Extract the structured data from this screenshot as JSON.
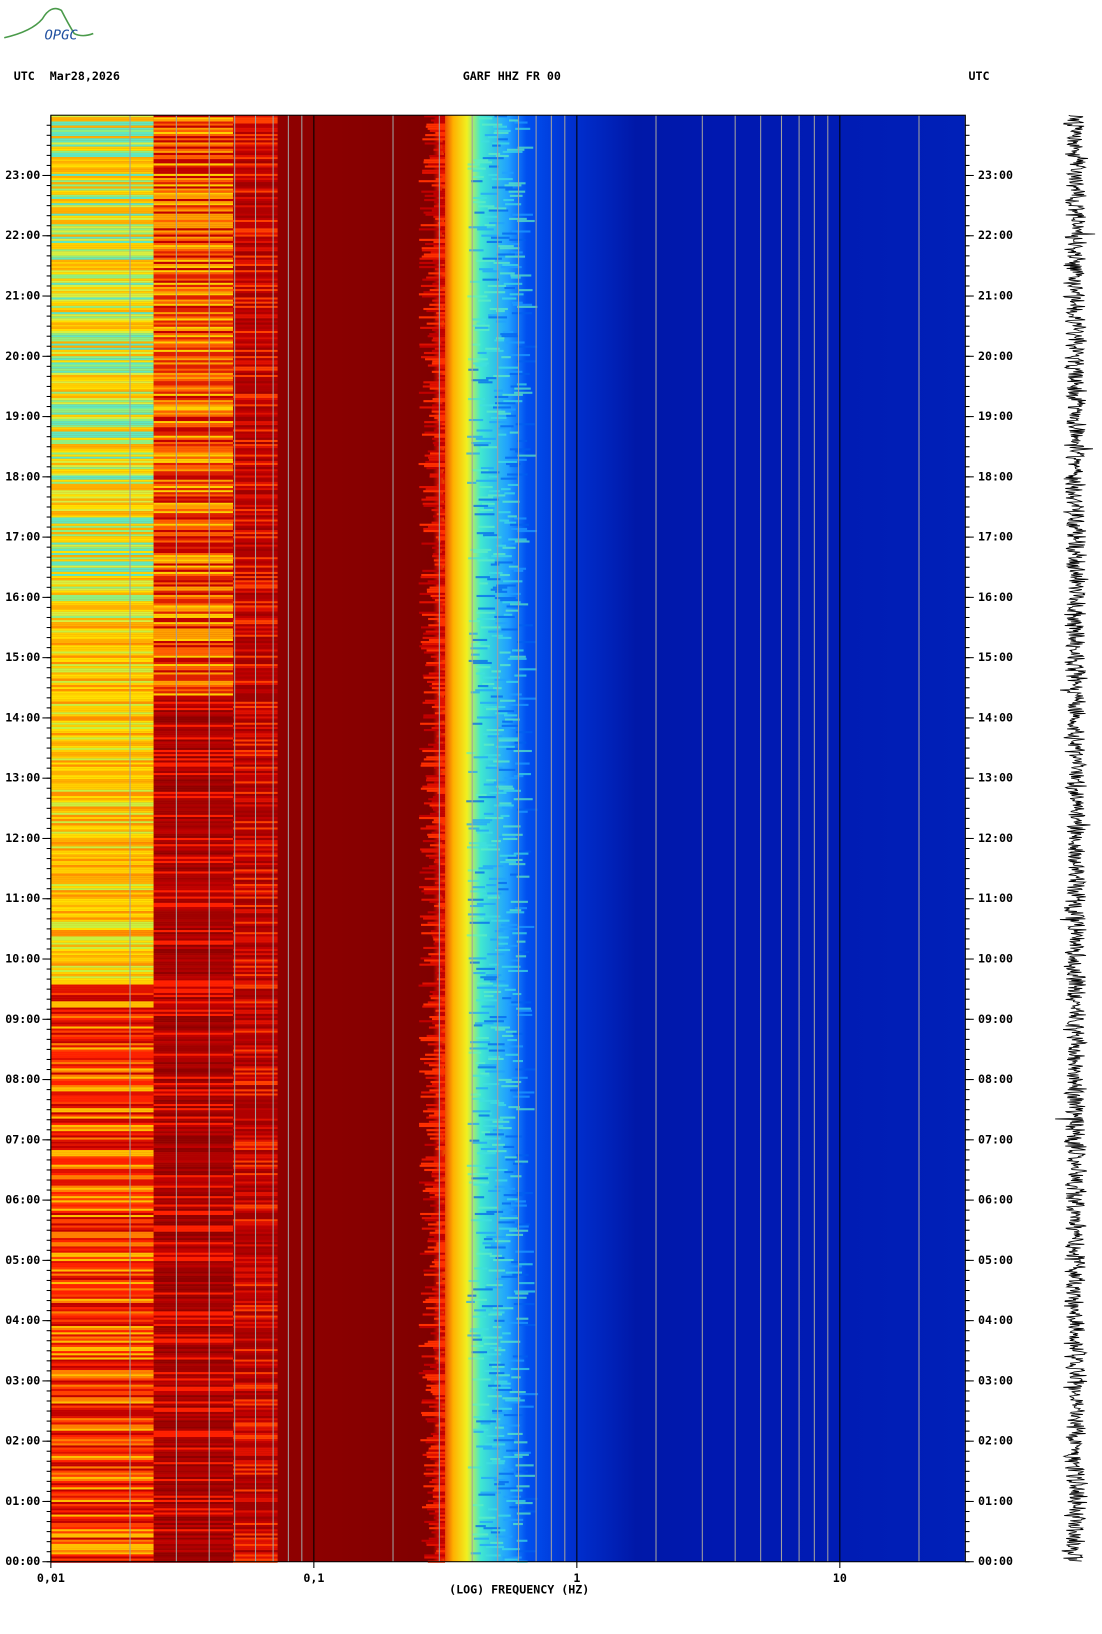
{
  "logo": "OPGC",
  "chart_data": {
    "type": "spectrogram",
    "title": "GARF HHZ FR 00",
    "left_label": "UTC",
    "date": "Mar28,2026",
    "right_label": "UTC",
    "x_label": "(LOG) FREQUENCY (HZ)",
    "xscale": "log",
    "xlim": [
      0.01,
      30
    ],
    "xticks": [
      {
        "value": 0.01,
        "label": "0,01"
      },
      {
        "value": 0.1,
        "label": "0,1"
      },
      1,
      10
    ],
    "ylim": [
      0,
      24
    ],
    "yticks": [
      {
        "value": 0,
        "label": "00:00"
      },
      {
        "value": 1,
        "label": "01:00"
      },
      {
        "value": 2,
        "label": "02:00"
      },
      {
        "value": 3,
        "label": "03:00"
      },
      {
        "value": 4,
        "label": "04:00"
      },
      {
        "value": 5,
        "label": "05:00"
      },
      {
        "value": 6,
        "label": "06:00"
      },
      {
        "value": 7,
        "label": "07:00"
      },
      {
        "value": 8,
        "label": "08:00"
      },
      {
        "value": 9,
        "label": "09:00"
      },
      {
        "value": 10,
        "label": "10:00"
      },
      {
        "value": 11,
        "label": "11:00"
      },
      {
        "value": 12,
        "label": "12:00"
      },
      {
        "value": 13,
        "label": "13:00"
      },
      {
        "value": 14,
        "label": "14:00"
      },
      {
        "value": 15,
        "label": "15:00"
      },
      {
        "value": 16,
        "label": "16:00"
      },
      {
        "value": 17,
        "label": "17:00"
      },
      {
        "value": 18,
        "label": "18:00"
      },
      {
        "value": 19,
        "label": "19:00"
      },
      {
        "value": 20,
        "label": "20:00"
      },
      {
        "value": 21,
        "label": "21:00"
      },
      {
        "value": 22,
        "label": "22:00"
      },
      {
        "value": 23,
        "label": "23:00"
      }
    ]
  }
}
